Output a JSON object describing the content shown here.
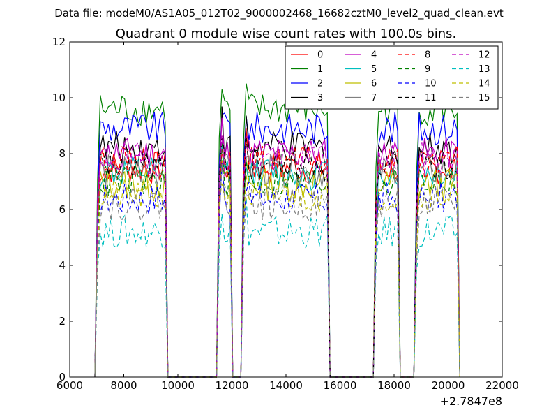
{
  "figure": {
    "suptitle": "Data file: modeM0/AS1A05_012T02_9000002468_16682cztM0_level2_quad_clean.evt"
  },
  "chart_data": {
    "type": "line",
    "title": "Quadrant 0 module wise count rates with 100.0s bins.",
    "xlabel": "",
    "ylabel": "",
    "xlim": [
      6000,
      22000
    ],
    "ylim": [
      0,
      12
    ],
    "x_offset_label": "+2.7847e8",
    "xticks": [
      6000,
      8000,
      10000,
      12000,
      14000,
      16000,
      18000,
      20000,
      22000
    ],
    "yticks": [
      0,
      2,
      4,
      6,
      8,
      10,
      12
    ],
    "grid": false,
    "legend": {
      "location": "upper right",
      "columns": 4
    },
    "segments": [
      {
        "start": 7030,
        "end": 9530
      },
      {
        "start": 11530,
        "end": 11930
      },
      {
        "start": 12430,
        "end": 15530
      },
      {
        "start": 17330,
        "end": 18130
      },
      {
        "start": 18830,
        "end": 20330
      }
    ],
    "series": [
      {
        "name": "0",
        "color": "#ff0000",
        "dash": "solid",
        "level": 7.5
      },
      {
        "name": "1",
        "color": "#008000",
        "dash": "solid",
        "level": 9.6
      },
      {
        "name": "2",
        "color": "#0000ff",
        "dash": "solid",
        "level": 8.9
      },
      {
        "name": "3",
        "color": "#000000",
        "dash": "solid",
        "level": 8.2
      },
      {
        "name": "4",
        "color": "#bf00bf",
        "dash": "solid",
        "level": 8.0
      },
      {
        "name": "5",
        "color": "#00bfbf",
        "dash": "solid",
        "level": 7.3
      },
      {
        "name": "6",
        "color": "#bfbf00",
        "dash": "solid",
        "level": 6.9
      },
      {
        "name": "7",
        "color": "#808080",
        "dash": "solid",
        "level": 7.4
      },
      {
        "name": "8",
        "color": "#ff0000",
        "dash": "dashed",
        "level": 7.7
      },
      {
        "name": "9",
        "color": "#008000",
        "dash": "dashed",
        "level": 7.0
      },
      {
        "name": "10",
        "color": "#0000ff",
        "dash": "dashed",
        "level": 6.4
      },
      {
        "name": "11",
        "color": "#000000",
        "dash": "dashed",
        "level": 7.6
      },
      {
        "name": "12",
        "color": "#bf00bf",
        "dash": "dashed",
        "level": 7.8
      },
      {
        "name": "13",
        "color": "#00bfbf",
        "dash": "dashed",
        "level": 5.2
      },
      {
        "name": "14",
        "color": "#bfbf00",
        "dash": "dashed",
        "level": 6.5
      },
      {
        "name": "15",
        "color": "#808080",
        "dash": "dashed",
        "level": 6.2
      }
    ]
  }
}
